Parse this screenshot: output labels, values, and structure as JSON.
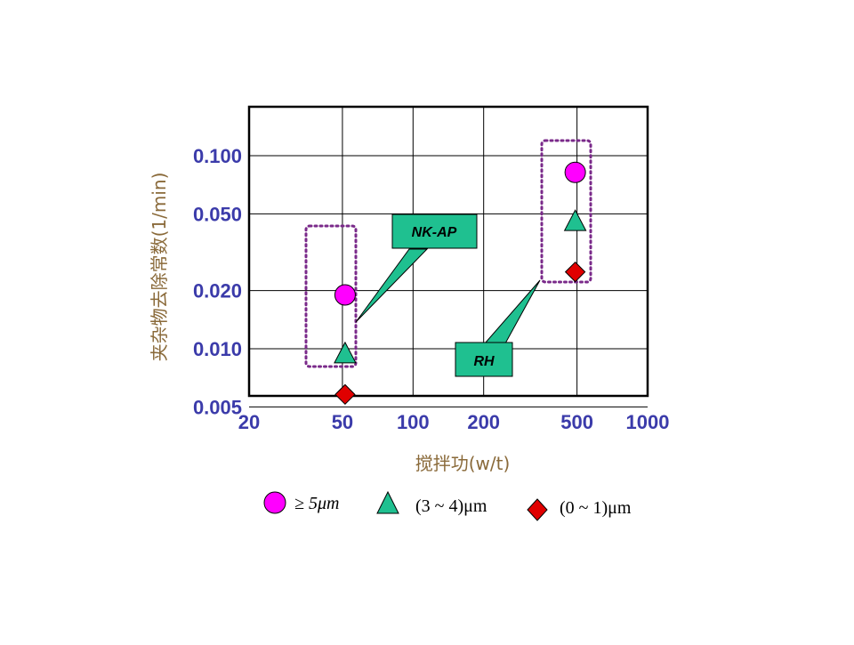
{
  "chart_data": {
    "type": "scatter",
    "x_scale": "log",
    "y_scale": "log",
    "xlabel": "搅拌功(w/t)",
    "ylabel": "夹杂物去除常数(1/min)",
    "x_ticks": [
      "20",
      "50",
      "100",
      "200",
      "500",
      "1000"
    ],
    "y_ticks": [
      "0.005",
      "0.010",
      "0.020",
      "0.050",
      "0.100"
    ],
    "grid": true,
    "series": [
      {
        "name": "≥ 5μm",
        "marker": "circle",
        "color": "#ff00ff",
        "x": [
          50,
          500
        ],
        "y": [
          0.019,
          0.082
        ]
      },
      {
        "name": "(3 ~ 4)μm",
        "marker": "triangle",
        "color": "#1fc090",
        "x": [
          50,
          500
        ],
        "y": [
          0.0095,
          0.046
        ]
      },
      {
        "name": "(0 ~ 1)μm",
        "marker": "diamond",
        "color": "#e00000",
        "x": [
          50,
          500
        ],
        "y": [
          0.0058,
          0.025
        ]
      }
    ],
    "annotations": [
      {
        "text": "NK-AP",
        "points_to_x": 50
      },
      {
        "text": "RH",
        "points_to_x": 500
      }
    ],
    "legend_placement": "bottom"
  },
  "colors": {
    "tick_labels": "#3b3baa",
    "axis_titles": "#8a6a3a",
    "callout_fill": "#1fc090",
    "group_box": "#7a2a8a"
  }
}
